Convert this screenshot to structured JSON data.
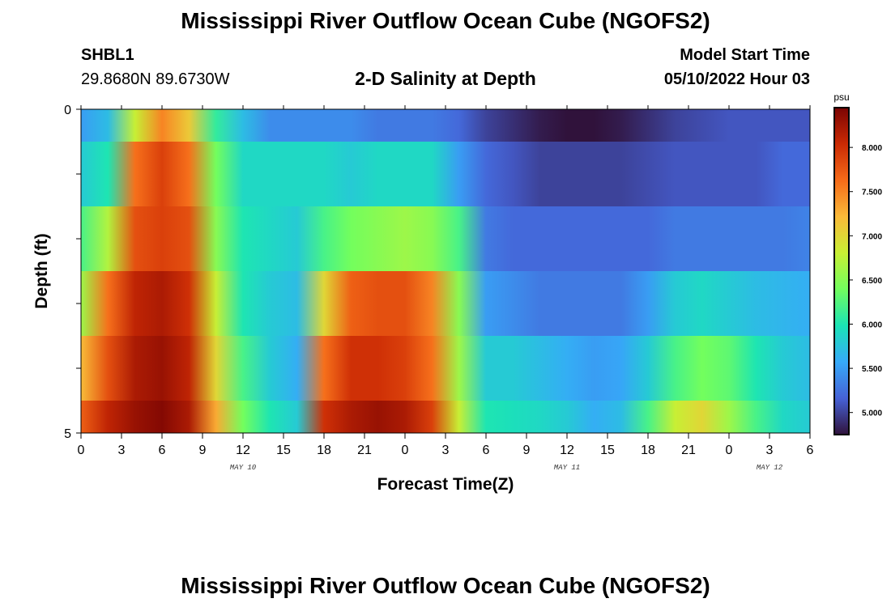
{
  "page": {
    "title": "Mississippi River Outflow Ocean Cube (NGOFS2)",
    "bottom_title": "Mississippi River Outflow Ocean Cube (NGOFS2)",
    "station": {
      "id": "SHBL1",
      "coords": "29.8680N  89.6730W"
    },
    "subtitle": "2-D Salinity at Depth",
    "model_start": {
      "label": "Model Start Time",
      "value": "05/10/2022 Hour 03"
    }
  },
  "colors": {
    "colormap": [
      "#30123b",
      "#4662d7",
      "#36aaf9",
      "#1ae4b6",
      "#72fe5e",
      "#c8ef34",
      "#faba39",
      "#f66b19",
      "#cb2a04",
      "#7a0403"
    ],
    "frame": "#000000"
  },
  "chart_data": {
    "type": "heatmap",
    "title": "2-D Salinity at Depth",
    "xlabel": "Forecast Time(Z)",
    "ylabel": "Depth (ft)",
    "x_ticks": [
      "0",
      "3",
      "6",
      "9",
      "12",
      "15",
      "18",
      "21",
      "0",
      "3",
      "6",
      "9",
      "12",
      "15",
      "18",
      "21",
      "0",
      "3",
      "6"
    ],
    "x_ticks_hours_from_start": [
      0,
      3,
      6,
      9,
      12,
      15,
      18,
      21,
      24,
      27,
      30,
      33,
      36,
      39,
      42,
      45,
      48,
      51,
      54
    ],
    "date_labels": [
      {
        "text": "MAY 10",
        "hour": 12
      },
      {
        "text": "MAY 11",
        "hour": 36
      },
      {
        "text": "MAY 12",
        "hour": 51
      }
    ],
    "xlim": [
      0,
      54
    ],
    "y_ticks": [
      "0",
      "5"
    ],
    "ylim": [
      0,
      5
    ],
    "depth_layers": [
      0,
      1,
      2,
      3,
      4,
      5
    ],
    "hours": [
      0,
      2,
      4,
      6,
      8,
      10,
      12,
      14,
      16,
      18,
      20,
      22,
      24,
      26,
      28,
      30,
      32,
      34,
      36,
      38,
      40,
      42,
      44,
      46,
      48,
      50,
      52,
      54
    ],
    "salinity": [
      [
        5.5,
        5.7,
        6.8,
        7.5,
        7.1,
        6.1,
        5.7,
        5.4,
        5.4,
        5.4,
        5.4,
        5.3,
        5.3,
        5.3,
        5.2,
        5.0,
        4.9,
        4.8,
        4.7,
        4.75,
        4.8,
        4.9,
        5.0,
        5.05,
        5.1,
        5.1,
        5.1,
        5.1
      ],
      [
        5.8,
        6.0,
        7.6,
        7.9,
        7.6,
        6.4,
        5.9,
        5.9,
        5.9,
        5.9,
        5.8,
        5.9,
        5.9,
        5.9,
        5.5,
        5.2,
        5.1,
        5.0,
        5.0,
        5.0,
        5.0,
        5.05,
        5.1,
        5.1,
        5.1,
        5.1,
        5.2,
        5.2
      ],
      [
        6.2,
        6.7,
        7.8,
        7.9,
        7.8,
        6.5,
        6.0,
        5.9,
        5.8,
        6.2,
        6.4,
        6.5,
        6.6,
        6.5,
        6.2,
        5.3,
        5.2,
        5.2,
        5.2,
        5.2,
        5.2,
        5.2,
        5.3,
        5.3,
        5.3,
        5.3,
        5.3,
        5.35
      ],
      [
        6.6,
        7.6,
        8.1,
        8.2,
        8.0,
        6.8,
        6.0,
        5.8,
        5.7,
        7.0,
        7.7,
        7.8,
        7.8,
        7.5,
        6.5,
        5.5,
        5.4,
        5.3,
        5.3,
        5.3,
        5.3,
        5.5,
        5.8,
        5.9,
        5.8,
        5.7,
        5.65,
        5.6
      ],
      [
        7.2,
        7.8,
        8.2,
        8.3,
        8.1,
        7.0,
        6.2,
        5.8,
        5.6,
        7.6,
        8.0,
        8.0,
        7.9,
        7.6,
        6.6,
        5.8,
        5.8,
        5.7,
        5.6,
        5.5,
        5.55,
        5.8,
        6.2,
        6.4,
        6.3,
        6.0,
        5.8,
        5.7
      ],
      [
        7.7,
        8.1,
        8.3,
        8.4,
        8.2,
        7.3,
        6.4,
        6.0,
        5.8,
        8.0,
        8.2,
        8.3,
        8.2,
        7.9,
        6.8,
        6.0,
        5.95,
        5.9,
        5.8,
        5.6,
        5.7,
        6.2,
        6.8,
        7.0,
        6.6,
        6.2,
        5.9,
        5.8
      ]
    ],
    "colorbar": {
      "unit": "psu",
      "ticks": [
        "5.000",
        "5.500",
        "6.000",
        "6.500",
        "7.000",
        "7.500",
        "8.000"
      ],
      "tick_values": [
        5.0,
        5.5,
        6.0,
        6.5,
        7.0,
        7.5,
        8.0
      ],
      "range": [
        4.75,
        8.45
      ]
    }
  }
}
